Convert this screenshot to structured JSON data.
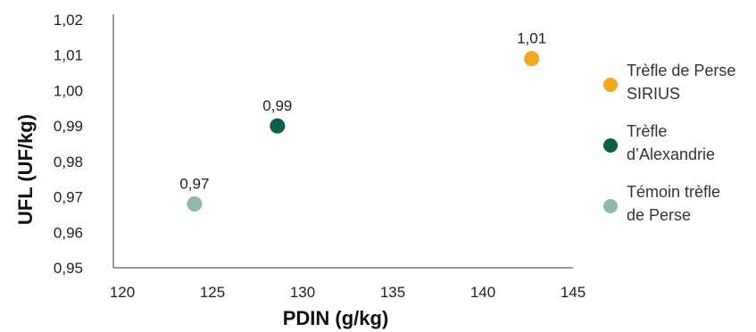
{
  "chart_data": {
    "type": "scatter",
    "title": "",
    "xlabel": "PDIN (g/kg)",
    "ylabel": "UFL (UF/kg)",
    "xlim": [
      120,
      145
    ],
    "ylim": [
      0.95,
      1.02
    ],
    "x_ticks": [
      "120",
      "125",
      "130",
      "135",
      "140",
      "145"
    ],
    "y_ticks": [
      "0,95",
      "0,96",
      "0,97",
      "0,98",
      "0,99",
      "1,00",
      "1,01",
      "1,02"
    ],
    "grid": false,
    "legend_position": "right",
    "series": [
      {
        "name": "Trèfle de Perse SIRIUS",
        "name_lines": [
          "Trèfle de Perse",
          "SIRIUS"
        ],
        "color": "#F2A81D",
        "x": 143.2,
        "y": 1.009,
        "label": "1,01"
      },
      {
        "name": "Trèfle d’Alexandrie",
        "name_lines": [
          "Trèfle",
          "d’Alexandrie"
        ],
        "color": "#0E5E4A",
        "x": 129.1,
        "y": 0.99,
        "label": "0,99"
      },
      {
        "name": "Témoin trèfle de Perse",
        "name_lines": [
          "Témoin trèfle",
          "de Perse"
        ],
        "color": "#8FB9A6",
        "x": 124.5,
        "y": 0.968,
        "label": "0,97"
      }
    ]
  }
}
